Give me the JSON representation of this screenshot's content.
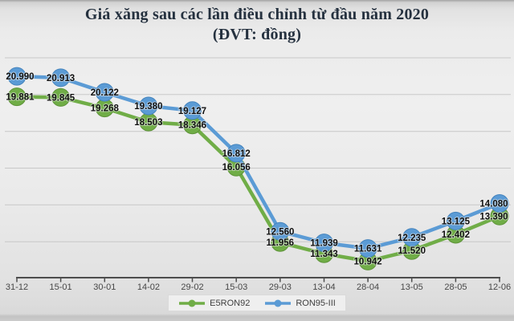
{
  "chart_data": {
    "type": "line",
    "title": "Giá xăng sau các lần điều chỉnh từ đầu năm 2020",
    "subtitle": "(ĐVT: đồng)",
    "categories": [
      "31-12",
      "15-01",
      "30-01",
      "14-02",
      "29-02",
      "15-03",
      "29-03",
      "13-04",
      "28-04",
      "13-05",
      "28-05",
      "12-06"
    ],
    "series": [
      {
        "name": "E5RON92",
        "color": "#70AD47",
        "edge_color": "#5d9338",
        "values": [
          19881,
          19845,
          19268,
          18503,
          18346,
          16056,
          11956,
          11343,
          10942,
          11520,
          12402,
          13390
        ],
        "labels": [
          "19.881",
          "19.845",
          "19.268",
          "18.503",
          "18.346",
          "16.056",
          "11.956",
          "11.343",
          "10.942",
          "11.520",
          "12.402",
          "13.390"
        ]
      },
      {
        "name": "RON95-III",
        "color": "#5B9BD5",
        "edge_color": "#4584bd",
        "values": [
          20990,
          20913,
          20122,
          19380,
          19127,
          16812,
          12560,
          11939,
          11631,
          12235,
          13125,
          14080
        ],
        "labels": [
          "20.990",
          "20.913",
          "20.122",
          "19.380",
          "19.127",
          "16.812",
          "12.560",
          "11.939",
          "11.631",
          "12.235",
          "13.125",
          "14.080"
        ]
      }
    ],
    "ylim": [
      10000,
      22000
    ],
    "gridline_values": [
      12000,
      14000,
      16000,
      18000,
      20000,
      22000
    ],
    "grid": true,
    "grid_color": "#c8c8c8",
    "axis_color": "#4d4d4d",
    "legend_position": "bottom"
  }
}
